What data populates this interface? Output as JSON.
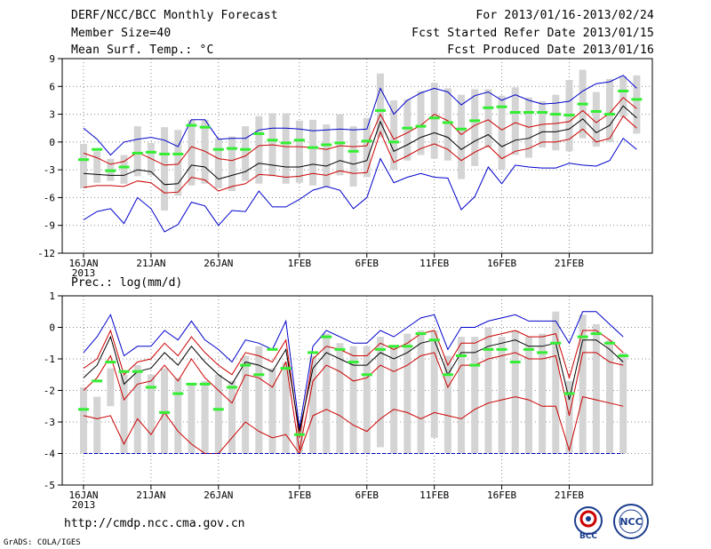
{
  "header": {
    "title": "DERF/NCC/BCC Monthly Forecast",
    "member_size": "Member Size=40",
    "variable1": "Mean Surf. Temp.: °C",
    "for_range": "For 2013/01/16-2013/02/24",
    "started": "Fcst Started Refer Date 2013/01/15",
    "produced": "Fcst Produced Date 2013/01/16"
  },
  "footer": {
    "url": "http://cmdp.ncc.cma.gov.cn",
    "grads": "GrADS: COLA/IGES",
    "logo1_text": "BCC",
    "logo2_text": "NCC"
  },
  "chart_data": [
    {
      "type": "box-ensemble",
      "title": "Mean Surf. Temp.: °C",
      "xlabel": "",
      "ylabel": "",
      "ylim": [
        -12,
        9
      ],
      "yticks": [
        -12,
        -9,
        -6,
        -3,
        0,
        3,
        6,
        9
      ],
      "xticks": [
        {
          "day": 1,
          "label": "16JAN",
          "sub": "2013"
        },
        {
          "day": 6,
          "label": "21JAN"
        },
        {
          "day": 11,
          "label": "26JAN"
        },
        {
          "day": 17,
          "label": "1FEB"
        },
        {
          "day": 22,
          "label": "6FEB"
        },
        {
          "day": 27,
          "label": "11FEB"
        },
        {
          "day": 32,
          "label": "16FEB"
        },
        {
          "day": 37,
          "label": "21FEB"
        }
      ],
      "series": [
        {
          "name": "ensemble max",
          "color": "#0000cc",
          "values": [
            1.5,
            0.3,
            -1.4,
            0,
            0.3,
            0.5,
            0.2,
            -0.5,
            2.4,
            2.4,
            0.3,
            0.4,
            0.4,
            1.3,
            1.5,
            1.5,
            1.4,
            1.2,
            1.3,
            1.4,
            1.3,
            1.4,
            5.8,
            3,
            4.5,
            5.3,
            5.8,
            5.4,
            4,
            5,
            5.4,
            4.5,
            5.1,
            4.5,
            4.1,
            4.2,
            4.4,
            5.5,
            6.3,
            6.5,
            7.2,
            5.8
          ]
        },
        {
          "name": "upper percentile",
          "color": "#cc0000",
          "values": [
            -1.2,
            -1.7,
            -2.4,
            -2.1,
            -1.1,
            -1.8,
            -2.5,
            -2.4,
            -0.5,
            -1,
            -1.8,
            -2,
            -1.5,
            -0.4,
            -0.3,
            -0.5,
            -0.5,
            -0.6,
            -0.8,
            -0.4,
            -0.5,
            -0.4,
            3,
            0.3,
            1,
            1.8,
            3,
            2.3,
            0.8,
            1.8,
            2.4,
            1.3,
            2.1,
            1.6,
            1.9,
            2,
            2.2,
            3.4,
            2.1,
            3.1,
            4.8,
            3.6
          ]
        },
        {
          "name": "ensemble mean",
          "color": "#000000",
          "values": [
            -3.4,
            -3.5,
            -3.6,
            -3.6,
            -3,
            -3.2,
            -4.6,
            -4.5,
            -2.5,
            -2.7,
            -4,
            -3.6,
            -3.2,
            -2.3,
            -2.5,
            -2.7,
            -2.7,
            -2.4,
            -2.6,
            -2,
            -2.4,
            -2,
            2.2,
            -1,
            -0.3,
            0.5,
            1,
            0.5,
            -0.8,
            0.1,
            0.8,
            -0.5,
            0.2,
            0.4,
            1.1,
            1.1,
            1.4,
            2.5,
            1,
            1.8,
            3.9,
            2.6
          ]
        },
        {
          "name": "lower percentile",
          "color": "#cc0000",
          "values": [
            -4.9,
            -4.7,
            -4.7,
            -4.8,
            -4.2,
            -4.4,
            -5.5,
            -5.4,
            -3.8,
            -4.1,
            -5.3,
            -4.8,
            -4.5,
            -3.5,
            -3.6,
            -3.8,
            -3.7,
            -3.4,
            -3.6,
            -3.1,
            -3.4,
            -3.3,
            1.1,
            -2.2,
            -1.5,
            -0.7,
            -0.2,
            -0.8,
            -2,
            -1.1,
            -0.4,
            -1.8,
            -1,
            -0.7,
            0,
            0,
            0.3,
            1.4,
            0,
            0.4,
            2.8,
            1.5
          ]
        },
        {
          "name": "ensemble min",
          "color": "#0000cc",
          "values": [
            -8.4,
            -7.5,
            -7.2,
            -8.8,
            -6,
            -7.2,
            -9.7,
            -8.9,
            -6.5,
            -6.9,
            -9,
            -7.4,
            -7.5,
            -5.3,
            -7,
            -7,
            -6.2,
            -5.2,
            -4.8,
            -5.2,
            -7.2,
            -6,
            -1.8,
            -4.4,
            -3.8,
            -3.4,
            -3.8,
            -3.9,
            -7.3,
            -5.9,
            -2.7,
            -4.5,
            -2.5,
            -2.7,
            -2.8,
            -2.8,
            -2.3,
            -2.5,
            -2.6,
            -2,
            0.4,
            -0.8
          ]
        }
      ],
      "box_low": [
        -5,
        -4.4,
        -4.2,
        -4.5,
        -3.7,
        -3.6,
        -7.4,
        -5.8,
        -4.7,
        -4.5,
        -5,
        -5.3,
        -4.2,
        -4.5,
        -3.7,
        -4.5,
        -4.4,
        -4.7,
        -4.9,
        -3.6,
        -4.8,
        -3.8,
        0.5,
        -3,
        -2,
        -1.4,
        -1.8,
        -2,
        -4,
        -2.6,
        -0.6,
        -3,
        -1.4,
        -1.7,
        -0.6,
        -0.9,
        -1,
        0.4,
        -0.5,
        0,
        2.7,
        0.9
      ],
      "box_high": [
        -0.2,
        -1,
        -1.8,
        -1.4,
        1.7,
        -0.1,
        1.6,
        1.3,
        2.4,
        2.4,
        0.4,
        0.6,
        1.7,
        2.8,
        3.1,
        3.1,
        2.3,
        2.4,
        1.9,
        3,
        1.7,
        2.6,
        7.4,
        4.5,
        4.6,
        5.5,
        6.4,
        5.8,
        5.1,
        5.7,
        5.7,
        5,
        5.9,
        4.8,
        4.4,
        5.1,
        6.7,
        7.8,
        5.4,
        6.8,
        7.1,
        7.2
      ],
      "green": [
        -1.9,
        -0.8,
        -3.1,
        -2.7,
        -1.2,
        -1.1,
        -1.3,
        -1.3,
        1.8,
        1.6,
        -0.8,
        -0.7,
        -0.8,
        0.9,
        0.2,
        -0.1,
        0.2,
        -0.6,
        -0.3,
        -0.1,
        -1,
        0.1,
        3.4,
        0,
        1.5,
        1.7,
        2.6,
        2.1,
        1.4,
        2.3,
        3.7,
        3.8,
        3.2,
        3.2,
        3.2,
        3,
        2.9,
        4.1,
        3.3,
        3,
        5.5,
        4.6
      ]
    },
    {
      "type": "box-ensemble",
      "title": "Prec.: log(mm/d)",
      "xlabel": "",
      "ylabel": "",
      "ylim": [
        -5,
        1
      ],
      "yticks": [
        -5,
        -4,
        -3,
        -2,
        -1,
        0,
        1
      ],
      "xticks": [
        {
          "day": 1,
          "label": "16JAN",
          "sub": "2013"
        },
        {
          "day": 6,
          "label": "21JAN"
        },
        {
          "day": 11,
          "label": "26JAN"
        },
        {
          "day": 17,
          "label": "1FEB"
        },
        {
          "day": 22,
          "label": "6FEB"
        },
        {
          "day": 27,
          "label": "11FEB"
        },
        {
          "day": 32,
          "label": "16FEB"
        },
        {
          "day": 37,
          "label": "21FEB"
        }
      ],
      "series": [
        {
          "name": "ensemble max",
          "color": "#0000cc",
          "values": [
            -0.8,
            -0.3,
            0.4,
            -0.9,
            -0.6,
            -0.6,
            -0.1,
            -0.4,
            0.2,
            -0.4,
            -0.7,
            -1.1,
            -0.4,
            -0.5,
            -0.7,
            0.2,
            -3.2,
            -0.6,
            -0.1,
            -0.3,
            -0.5,
            -0.5,
            -0.1,
            -0.3,
            0,
            0.3,
            0.4,
            -0.7,
            0,
            0,
            0.2,
            0.3,
            0.4,
            0.2,
            0.2,
            0.2,
            -0.5,
            0.5,
            0.5,
            0.1,
            -0.3
          ]
        },
        {
          "name": "upper percentile",
          "color": "#cc0000",
          "values": [
            -1.3,
            -1,
            -0.1,
            -1.5,
            -1.1,
            -1,
            -0.5,
            -0.9,
            -0.3,
            -0.8,
            -1.2,
            -1.5,
            -0.8,
            -0.9,
            -1.1,
            -0.4,
            -3.5,
            -1,
            -0.6,
            -0.7,
            -0.9,
            -0.9,
            -0.5,
            -0.7,
            -0.5,
            -0.2,
            -0.1,
            -1.2,
            -0.5,
            -0.5,
            -0.3,
            -0.2,
            -0.1,
            -0.3,
            -0.3,
            -0.2,
            -1.6,
            -0.1,
            -0.1,
            -0.4,
            -0.8
          ]
        },
        {
          "name": "ensemble mean",
          "color": "#000000",
          "values": [
            -1.6,
            -1.2,
            -0.3,
            -1.8,
            -1.4,
            -1.3,
            -0.8,
            -1.2,
            -0.6,
            -1.1,
            -1.5,
            -1.8,
            -1.1,
            -1.2,
            -1.4,
            -0.7,
            -3.3,
            -1.3,
            -0.8,
            -1,
            -1.2,
            -1.2,
            -0.8,
            -1,
            -0.8,
            -0.5,
            -0.4,
            -1.5,
            -0.8,
            -0.8,
            -0.6,
            -0.5,
            -0.4,
            -0.6,
            -0.6,
            -0.5,
            -2.3,
            -0.4,
            -0.4,
            -0.7,
            -1.1
          ]
        },
        {
          "name": "lower percentile",
          "color": "#cc0000",
          "values": [
            -2,
            -1.6,
            -0.9,
            -2.3,
            -1.8,
            -1.7,
            -1.2,
            -1.7,
            -1,
            -1.6,
            -2,
            -2.4,
            -1.5,
            -1.6,
            -1.9,
            -1.1,
            -3.9,
            -1.7,
            -1.2,
            -1.4,
            -1.7,
            -1.6,
            -1.2,
            -1.4,
            -1.2,
            -0.9,
            -0.8,
            -1.9,
            -1.2,
            -1.2,
            -1,
            -0.9,
            -0.8,
            -1,
            -1,
            -0.9,
            -2.8,
            -0.8,
            -0.8,
            -1.1,
            -1.2
          ]
        },
        {
          "name": "ensemble min",
          "color": "#cc0000",
          "values": [
            -2.8,
            -2.9,
            -2.8,
            -3.7,
            -2.9,
            -3.4,
            -2.7,
            -3.3,
            -3.7,
            -4,
            -4,
            -3.5,
            -3,
            -3.3,
            -3.5,
            -3.4,
            -4,
            -2.8,
            -2.6,
            -2.8,
            -3.1,
            -3.3,
            -2.9,
            -2.6,
            -2.7,
            -2.9,
            -2.7,
            -2.8,
            -2.9,
            -2.6,
            -2.4,
            -2.3,
            -2.2,
            -2.3,
            -2.5,
            -2.5,
            -3.9,
            -2.2,
            -2.3,
            -2.4,
            -2.5
          ]
        },
        {
          "name": "floor",
          "color": "#0000cc",
          "values": [
            -4,
            -4,
            -4,
            -4,
            -4,
            -4,
            -4,
            -4,
            -4,
            -4,
            -4,
            -4,
            -4,
            -4,
            -4,
            -4,
            -4,
            -4,
            -4,
            -4,
            -4,
            -4,
            -4,
            -4,
            -4,
            -4,
            -4,
            -4,
            -4,
            -4,
            -4,
            -4,
            -4,
            -4,
            -4,
            -4,
            -4,
            -4,
            -4,
            -4,
            -4
          ]
        }
      ],
      "box_low": [
        -4,
        -4,
        -2.5,
        -4,
        -4,
        -4,
        -4,
        -4,
        -4,
        -4,
        -4,
        -4,
        -4,
        -4,
        -4,
        -4,
        -4,
        -4,
        -4,
        -4,
        -4,
        -4,
        -3.8,
        -4,
        -4,
        -4,
        -3.5,
        -4,
        -4,
        -4,
        -4,
        -4,
        -4,
        -4,
        -4,
        -4,
        -4,
        -4,
        -4,
        -4,
        -4
      ],
      "box_high": [
        -1.9,
        -2.2,
        -1.3,
        -1.5,
        -1.2,
        -1.5,
        -1.3,
        -1.6,
        -1.8,
        -1.7,
        -1.5,
        -1.7,
        -0.9,
        -0.6,
        -1.3,
        -1.1,
        -3.1,
        -0.9,
        -0.2,
        -0.5,
        -0.6,
        -0.6,
        -0.3,
        -0.6,
        -0.2,
        -0.1,
        -0.1,
        -0.9,
        -0.3,
        -0.3,
        0,
        -0.3,
        -0.1,
        -0.3,
        -0.2,
        0.5,
        -1.7,
        0.4,
        0.1,
        -0.4,
        -0.8
      ],
      "green": [
        -2.6,
        -1.7,
        -1.1,
        -1.4,
        -1.4,
        -1.9,
        -2.7,
        -2.1,
        -1.8,
        -1.8,
        -2.6,
        -1.9,
        -1.2,
        -1.5,
        -0.7,
        -1.3,
        -3.4,
        -0.8,
        -0.3,
        -0.7,
        -1.1,
        -1.5,
        -0.7,
        -0.6,
        -0.6,
        -0.2,
        -0.4,
        -1.5,
        -0.9,
        -1.2,
        -0.7,
        -0.7,
        -1.1,
        -0.7,
        -0.8,
        -0.5,
        -2.1,
        -0.3,
        -0.2,
        -0.5,
        -0.9
      ]
    }
  ]
}
